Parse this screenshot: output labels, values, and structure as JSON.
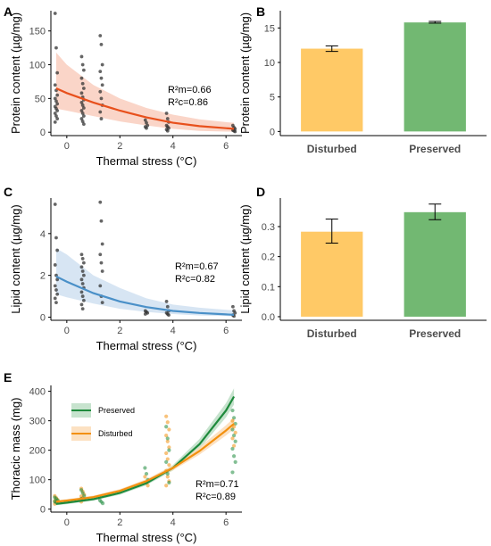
{
  "chart_data": [
    {
      "panel": "A",
      "type": "scatter",
      "xlabel": "Thermal stress (°C)",
      "ylabel": "Protein content (µg/mg)",
      "xlim": [
        -0.6,
        6.6
      ],
      "ylim": [
        -5,
        180
      ],
      "xticks": [
        0,
        2,
        4,
        6
      ],
      "yticks": [
        0,
        50,
        100,
        150
      ],
      "annotation": [
        "R²m=0.66",
        "R²c=0.86"
      ],
      "point_color": "#333333",
      "line_color": "#e8501c",
      "band_color": "#f8c7b5",
      "points": [
        {
          "x": -0.4,
          "y": [
            176,
            125,
            88,
            70,
            62,
            55,
            50,
            46,
            42,
            38,
            35,
            32,
            28,
            24,
            20,
            15
          ]
        },
        {
          "x": 0.6,
          "y": [
            112,
            100,
            92,
            80,
            72,
            65,
            58,
            52,
            48,
            44,
            40,
            36,
            32,
            28,
            24,
            20,
            16,
            12
          ]
        },
        {
          "x": 1.3,
          "y": [
            143,
            130,
            100,
            90,
            80,
            70,
            60,
            50,
            40,
            30,
            20
          ]
        },
        {
          "x": 3.0,
          "y": [
            18,
            14,
            10,
            8,
            6
          ]
        },
        {
          "x": 3.8,
          "y": [
            28,
            20,
            15,
            10,
            8,
            6,
            4,
            2
          ]
        },
        {
          "x": 6.3,
          "y": [
            10,
            7,
            5,
            3,
            2,
            1
          ]
        }
      ],
      "fit": {
        "x": [
          -0.4,
          0,
          1,
          2,
          3,
          4,
          5,
          6,
          6.3
        ],
        "y": [
          65,
          58,
          44,
          32,
          22,
          14,
          9,
          6,
          5
        ]
      },
      "band_upper": [
        118,
        100,
        70,
        50,
        36,
        26,
        19,
        15,
        14
      ],
      "band_lower": [
        35,
        32,
        24,
        16,
        10,
        5,
        2,
        1,
        1
      ]
    },
    {
      "panel": "B",
      "type": "bar",
      "categories": [
        "Disturbed",
        "Preserved"
      ],
      "values": [
        12.0,
        15.8
      ],
      "err_low": [
        11.6,
        15.7
      ],
      "err_high": [
        12.4,
        15.95
      ],
      "colors": [
        "#ffc966",
        "#72b872"
      ],
      "ylabel": "Protein content (µg/mg)",
      "ylim": [
        -0.6,
        17.5
      ],
      "yticks": [
        0,
        5,
        10,
        15
      ]
    },
    {
      "panel": "C",
      "type": "scatter",
      "xlabel": "Thermal stress (°C)",
      "ylabel": "Lipid content (µg/mg)",
      "xlim": [
        -0.6,
        6.6
      ],
      "ylim": [
        -0.15,
        5.7
      ],
      "xticks": [
        0,
        2,
        4,
        6
      ],
      "yticks": [
        0,
        2,
        4
      ],
      "annotation": [
        "R²m=0.67",
        "R²c=0.82"
      ],
      "point_color": "#333333",
      "line_color": "#4a90c8",
      "band_color": "#c9dcef",
      "points": [
        {
          "x": -0.4,
          "y": [
            5.4,
            3.8,
            3.2,
            2.5,
            2.0,
            1.8,
            1.5,
            1.3,
            1.1,
            0.9,
            0.7
          ]
        },
        {
          "x": 0.6,
          "y": [
            3.0,
            2.8,
            2.6,
            2.4,
            2.2,
            2.0,
            1.8,
            1.6,
            1.4,
            1.2,
            1.0,
            0.8,
            0.6,
            0.4
          ]
        },
        {
          "x": 1.3,
          "y": [
            5.5,
            4.6,
            3.5,
            3.0,
            2.6,
            2.2,
            1.5,
            1.0,
            0.7
          ]
        },
        {
          "x": 3.0,
          "y": [
            0.3,
            0.25,
            0.2,
            0.15
          ]
        },
        {
          "x": 3.8,
          "y": [
            0.75,
            0.5,
            0.3,
            0.2,
            0.15,
            0.1
          ]
        },
        {
          "x": 6.3,
          "y": [
            0.5,
            0.3,
            0.2,
            0.1,
            0.05
          ]
        }
      ],
      "fit": {
        "x": [
          -0.4,
          0,
          1,
          2,
          3,
          4,
          5,
          6,
          6.3
        ],
        "y": [
          1.95,
          1.7,
          1.15,
          0.75,
          0.48,
          0.3,
          0.2,
          0.13,
          0.11
        ]
      },
      "band_upper": [
        3.3,
        3.0,
        2.0,
        1.4,
        0.9,
        0.6,
        0.45,
        0.35,
        0.33
      ],
      "band_lower": [
        1.1,
        0.95,
        0.65,
        0.4,
        0.25,
        0.15,
        0.08,
        0.05,
        0.04
      ]
    },
    {
      "panel": "D",
      "type": "bar",
      "categories": [
        "Disturbed",
        "Preserved"
      ],
      "values": [
        0.283,
        0.348
      ],
      "err_low": [
        0.245,
        0.323
      ],
      "err_high": [
        0.325,
        0.375
      ],
      "colors": [
        "#ffc966",
        "#72b872"
      ],
      "ylabel": "Lipid content (µg/mg)",
      "ylim": [
        -0.012,
        0.395
      ],
      "yticks": [
        0.0,
        0.1,
        0.2,
        0.3
      ]
    },
    {
      "panel": "E",
      "type": "scatter",
      "xlabel": "Thermal stress (°C)",
      "ylabel": "Thoracic mass (mg)",
      "xlim": [
        -0.6,
        6.6
      ],
      "ylim": [
        -10,
        420
      ],
      "xticks": [
        0,
        2,
        4,
        6
      ],
      "yticks": [
        0,
        100,
        200,
        300,
        400
      ],
      "annotation": [
        "R²m=0.71",
        "R²c=0.89"
      ],
      "legend": [
        {
          "name": "Preserved",
          "color": "#1e8a3c",
          "band": "#b9dcc2"
        },
        {
          "name": "Disturbed",
          "color": "#f2900f",
          "band": "#fbd9b3"
        }
      ],
      "points": [
        {
          "x": -0.4,
          "series": "Disturbed",
          "y": [
            45,
            38,
            32,
            28,
            25,
            22,
            18
          ]
        },
        {
          "x": -0.4,
          "series": "Preserved",
          "y": [
            40,
            35,
            30,
            26,
            22
          ]
        },
        {
          "x": 0.6,
          "series": "Disturbed",
          "y": [
            70,
            60,
            50,
            44,
            38,
            32,
            25
          ]
        },
        {
          "x": 0.6,
          "series": "Preserved",
          "y": [
            65,
            55,
            45,
            35
          ]
        },
        {
          "x": 1.3,
          "series": "Preserved",
          "y": [
            30,
            25,
            20
          ]
        },
        {
          "x": 3.0,
          "series": "Preserved",
          "y": [
            140,
            120,
            100
          ]
        },
        {
          "x": 3.0,
          "series": "Disturbed",
          "y": [
            110,
            90,
            80
          ]
        },
        {
          "x": 3.8,
          "series": "Disturbed",
          "y": [
            315,
            295,
            270,
            250,
            230,
            210,
            190,
            170,
            150,
            130,
            110,
            95,
            80
          ]
        },
        {
          "x": 3.8,
          "series": "Preserved",
          "y": [
            280,
            240,
            200,
            160,
            120,
            90
          ]
        },
        {
          "x": 6.3,
          "series": "Preserved",
          "y": [
            335,
            310,
            290,
            270,
            250,
            230,
            205,
            180,
            160,
            125
          ]
        },
        {
          "x": 6.3,
          "series": "Disturbed",
          "y": [
            300,
            280,
            260,
            240,
            215
          ]
        }
      ],
      "fits": [
        {
          "name": "Preserved",
          "x": [
            -0.4,
            0,
            1,
            2,
            3,
            4,
            5,
            6,
            6.3
          ],
          "y": [
            18,
            22,
            34,
            55,
            88,
            140,
            220,
            335,
            382
          ],
          "band_upper": [
            24,
            28,
            40,
            62,
            96,
            150,
            238,
            360,
            410
          ],
          "band_lower": [
            13,
            17,
            29,
            49,
            81,
            131,
            204,
            312,
            355
          ]
        },
        {
          "name": "Disturbed",
          "x": [
            -0.4,
            0,
            1,
            2,
            3,
            4,
            5,
            6,
            6.3
          ],
          "y": [
            25,
            29,
            41,
            62,
            95,
            140,
            197,
            267,
            290
          ],
          "band_upper": [
            30,
            34,
            46,
            68,
            102,
            148,
            210,
            285,
            310
          ],
          "band_lower": [
            20,
            24,
            36,
            57,
            89,
            132,
            185,
            250,
            272
          ]
        }
      ]
    }
  ]
}
